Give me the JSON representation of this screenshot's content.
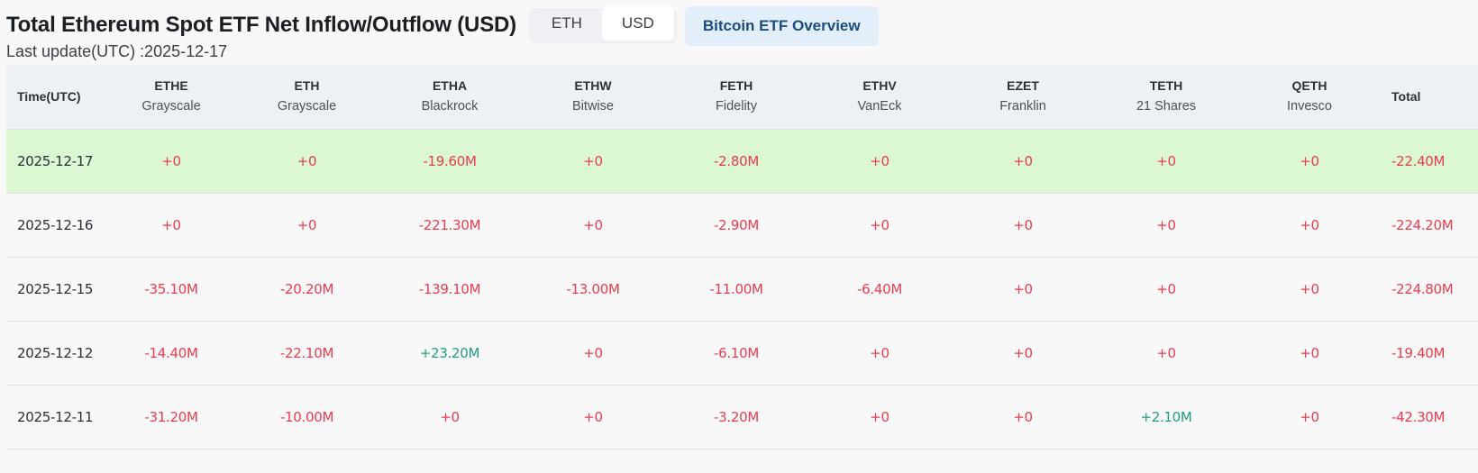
{
  "header": {
    "title": "Total Ethereum Spot ETF Net Inflow/Outflow (USD)",
    "toggle": [
      {
        "label": "ETH",
        "active": false
      },
      {
        "label": "USD",
        "active": true
      }
    ],
    "overview_link": "Bitcoin ETF Overview",
    "last_update": "Last update(UTC) :2025-12-17"
  },
  "colors": {
    "negative": "#eb3b4f",
    "positive": "#1f9e80",
    "highlight_row": "#dbf8d3",
    "header_bg": "#edf0f4",
    "link_bg": "#e3eefb",
    "link_text": "#1c4c7e"
  },
  "table": {
    "columns": [
      {
        "ticker": "Time(UTC)",
        "issuer": ""
      },
      {
        "ticker": "ETHE",
        "issuer": "Grayscale"
      },
      {
        "ticker": "ETH",
        "issuer": "Grayscale"
      },
      {
        "ticker": "ETHA",
        "issuer": "Blackrock"
      },
      {
        "ticker": "ETHW",
        "issuer": "Bitwise"
      },
      {
        "ticker": "FETH",
        "issuer": "Fidelity"
      },
      {
        "ticker": "ETHV",
        "issuer": "VanEck"
      },
      {
        "ticker": "EZET",
        "issuer": "Franklin"
      },
      {
        "ticker": "TETH",
        "issuer": "21 Shares"
      },
      {
        "ticker": "QETH",
        "issuer": "Invesco"
      },
      {
        "ticker": "Total",
        "issuer": ""
      }
    ],
    "rows": [
      {
        "date": "2025-12-17",
        "highlight": true,
        "values": [
          "+0",
          "+0",
          "-19.60M",
          "+0",
          "-2.80M",
          "+0",
          "+0",
          "+0",
          "+0",
          "-22.40M"
        ],
        "signs": [
          "neg",
          "neg",
          "neg",
          "neg",
          "neg",
          "neg",
          "neg",
          "neg",
          "neg",
          "neg"
        ]
      },
      {
        "date": "2025-12-16",
        "highlight": false,
        "values": [
          "+0",
          "+0",
          "-221.30M",
          "+0",
          "-2.90M",
          "+0",
          "+0",
          "+0",
          "+0",
          "-224.20M"
        ],
        "signs": [
          "neg",
          "neg",
          "neg",
          "neg",
          "neg",
          "neg",
          "neg",
          "neg",
          "neg",
          "neg"
        ]
      },
      {
        "date": "2025-12-15",
        "highlight": false,
        "values": [
          "-35.10M",
          "-20.20M",
          "-139.10M",
          "-13.00M",
          "-11.00M",
          "-6.40M",
          "+0",
          "+0",
          "+0",
          "-224.80M"
        ],
        "signs": [
          "neg",
          "neg",
          "neg",
          "neg",
          "neg",
          "neg",
          "neg",
          "neg",
          "neg",
          "neg"
        ]
      },
      {
        "date": "2025-12-12",
        "highlight": false,
        "values": [
          "-14.40M",
          "-22.10M",
          "+23.20M",
          "+0",
          "-6.10M",
          "+0",
          "+0",
          "+0",
          "+0",
          "-19.40M"
        ],
        "signs": [
          "neg",
          "neg",
          "pos",
          "neg",
          "neg",
          "neg",
          "neg",
          "neg",
          "neg",
          "neg"
        ]
      },
      {
        "date": "2025-12-11",
        "highlight": false,
        "values": [
          "-31.20M",
          "-10.00M",
          "+0",
          "+0",
          "-3.20M",
          "+0",
          "+0",
          "+2.10M",
          "+0",
          "-42.30M"
        ],
        "signs": [
          "neg",
          "neg",
          "neg",
          "neg",
          "neg",
          "neg",
          "neg",
          "pos",
          "neg",
          "neg"
        ]
      }
    ]
  }
}
